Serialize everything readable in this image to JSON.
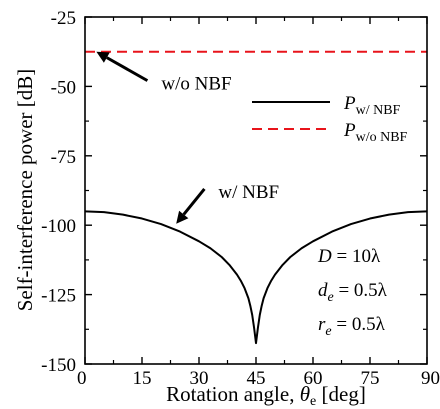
{
  "chart_data": {
    "type": "line",
    "xlabel": "Rotation angle, ",
    "xlabel_symbol": "θ",
    "xlabel_sub": "e",
    "xlabel_unit": " [deg]",
    "ylabel": "Self-interference power [dB]",
    "xlim": [
      0,
      90
    ],
    "ylim": [
      -150,
      -25
    ],
    "x_ticks": [
      0,
      15,
      30,
      45,
      60,
      75,
      90
    ],
    "y_ticks": [
      -25,
      -50,
      -75,
      -100,
      -125,
      -150
    ],
    "grid": false,
    "legend_position": "top-right",
    "series": [
      {
        "name": "P",
        "name_sub": "w/ NBF",
        "style": "solid",
        "color": "#000000",
        "x": [
          0,
          5,
          10,
          15,
          20,
          25,
          30,
          33,
          36,
          38,
          40,
          41,
          42,
          43,
          43.5,
          44,
          44.5,
          45,
          45.5,
          46,
          46.5,
          47,
          48,
          49,
          50,
          52,
          54,
          57,
          60,
          65,
          70,
          75,
          80,
          85,
          90
        ],
        "y": [
          -95,
          -95.3,
          -96.2,
          -97.6,
          -99.6,
          -102.3,
          -105.8,
          -108.3,
          -111.5,
          -114.3,
          -117.8,
          -120,
          -122.7,
          -126.3,
          -129,
          -132.3,
          -137,
          -142.5,
          -137,
          -132.3,
          -129,
          -126.3,
          -122.7,
          -120,
          -117.8,
          -114.3,
          -111.5,
          -108.3,
          -105.8,
          -102.3,
          -99.6,
          -97.6,
          -96.2,
          -95.3,
          -95
        ]
      },
      {
        "name": "P",
        "name_sub": "w/o NBF",
        "style": "dashed",
        "color": "#e8141b",
        "x": [
          0,
          90
        ],
        "y": [
          -37.5,
          -37.5
        ]
      }
    ],
    "annotations": [
      {
        "text": "w/o NBF",
        "points_to": [
          3,
          -37.5
        ],
        "text_at": [
          18,
          -49
        ]
      },
      {
        "text": "w/ NBF",
        "points_to": [
          24,
          -99.5
        ],
        "text_at": [
          33,
          -88
        ]
      }
    ],
    "params": [
      {
        "symbol": "D",
        "sub": "",
        "value": " = 10λ"
      },
      {
        "symbol": "d",
        "sub": "e",
        "value": " = 0.5λ"
      },
      {
        "symbol": "r",
        "sub": "e",
        "value": " = 0.5λ"
      }
    ]
  }
}
